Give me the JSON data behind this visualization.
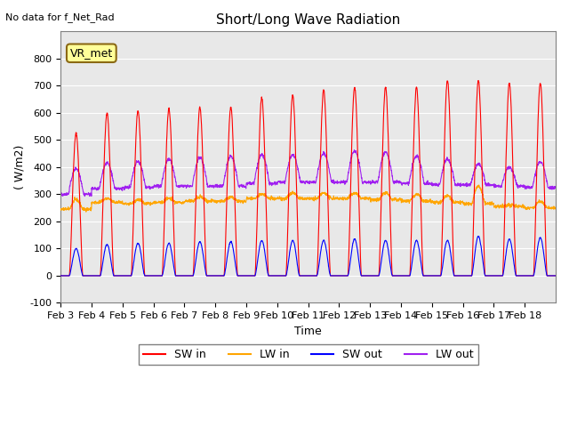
{
  "title": "Short/Long Wave Radiation",
  "xlabel": "Time",
  "ylabel": "( W/m2)",
  "ylim": [
    -100,
    900
  ],
  "yticks": [
    -100,
    0,
    100,
    200,
    300,
    400,
    500,
    600,
    700,
    800
  ],
  "annotation_text": "No data for f_Net_Rad",
  "vr_met_label": "VR_met",
  "x_tick_labels": [
    "Feb 3",
    "Feb 4",
    "Feb 5",
    "Feb 6",
    "Feb 7",
    "Feb 8",
    "Feb 9",
    "Feb 10",
    "Feb 11",
    "Feb 12",
    "Feb 13",
    "Feb 14",
    "Feb 15",
    "Feb 16",
    "Feb 17",
    "Feb 18"
  ],
  "colors": {
    "SW_in": "#ff0000",
    "LW_in": "#ffa500",
    "SW_out": "#0000ff",
    "LW_out": "#a020f0",
    "background": "#e8e8e8",
    "vr_met_bg": "#ffff99",
    "vr_met_border": "#8b6914"
  },
  "legend_labels": [
    "SW in",
    "LW in",
    "SW out",
    "LW out"
  ],
  "num_days": 16,
  "SW_in_peaks": [
    525,
    600,
    607,
    615,
    620,
    620,
    655,
    665,
    685,
    695,
    695,
    695,
    720,
    720,
    710,
    710
  ],
  "LW_in_base": [
    245,
    270,
    265,
    270,
    275,
    275,
    285,
    285,
    285,
    285,
    280,
    275,
    270,
    265,
    255,
    250
  ],
  "LW_in_peaks": [
    280,
    285,
    280,
    285,
    290,
    290,
    300,
    305,
    305,
    305,
    305,
    300,
    295,
    330,
    260,
    275
  ],
  "SW_out_peaks": [
    100,
    115,
    120,
    120,
    125,
    125,
    130,
    130,
    130,
    135,
    130,
    130,
    130,
    145,
    135,
    140
  ],
  "LW_out_base": [
    300,
    320,
    325,
    330,
    330,
    330,
    340,
    345,
    345,
    345,
    345,
    340,
    335,
    335,
    330,
    325
  ],
  "LW_out_peaks": [
    395,
    415,
    420,
    430,
    435,
    440,
    445,
    445,
    450,
    460,
    455,
    440,
    430,
    410,
    400,
    420
  ]
}
